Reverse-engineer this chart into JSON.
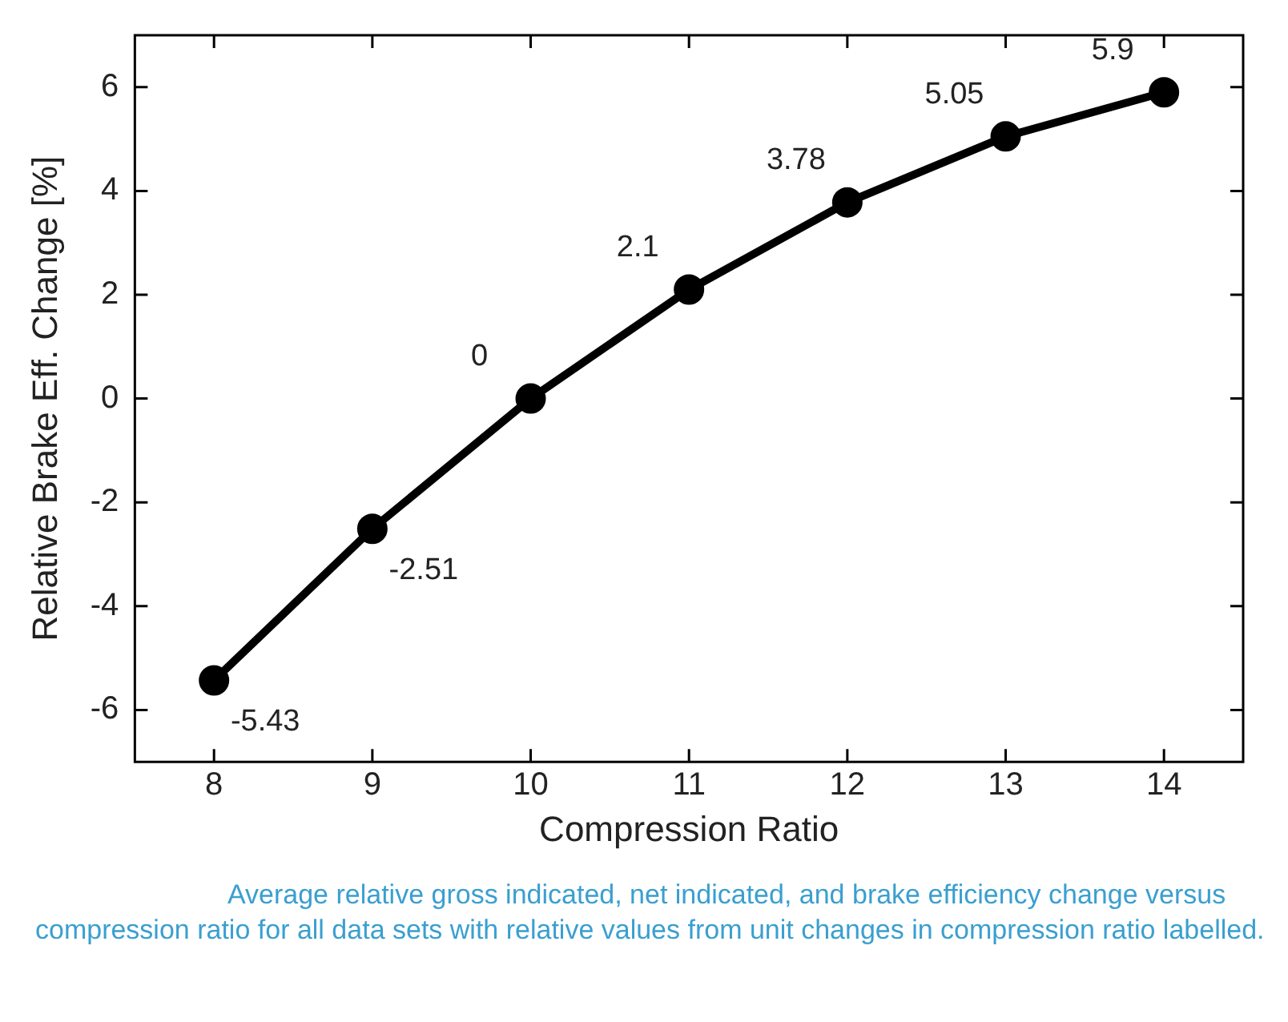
{
  "chart_data": {
    "type": "line",
    "xlabel": "Compression Ratio",
    "ylabel": "Relative Brake Eff. Change [%]",
    "x": [
      8,
      9,
      10,
      11,
      12,
      13,
      14
    ],
    "series": [
      {
        "color": "#000000",
        "values": [
          -5.43,
          -2.51,
          0,
          2.1,
          3.78,
          5.05,
          5.9
        ]
      }
    ],
    "xlim": [
      7.5,
      14.5
    ],
    "xticks": [
      8,
      9,
      10,
      11,
      12,
      13,
      14
    ],
    "ylim": [
      -7,
      7
    ],
    "yticks": [
      -6,
      -4,
      -2,
      0,
      2,
      4,
      6
    ],
    "grid": false,
    "legend": false,
    "marker": "circle",
    "line_style": "solid",
    "data_labels": true,
    "annotations": [
      "Average relative gross indicated, net indicated, and brake efficiency change versus compression ratio for all data sets with relative values from unit changes in compression ratio labelled."
    ]
  }
}
